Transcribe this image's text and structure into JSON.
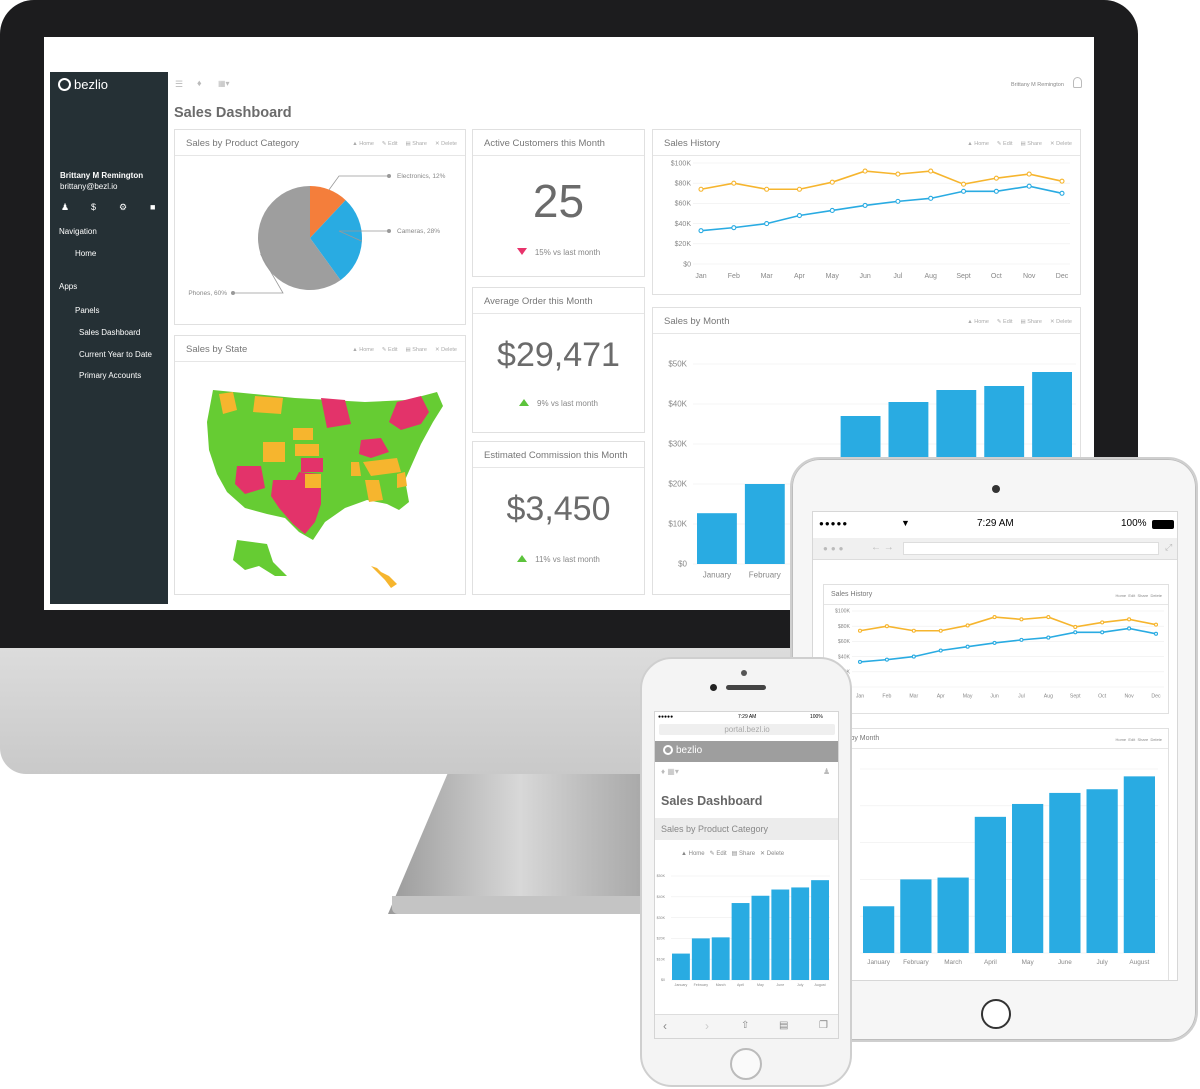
{
  "brand": {
    "name": "bezlio"
  },
  "user": {
    "name": "Brittany M Remington",
    "email": "brittany@bezl.io"
  },
  "sidebar": {
    "navigation_heading": "Navigation",
    "home": "Home",
    "apps_heading": "Apps",
    "panels": "Panels",
    "items": [
      "Sales Dashboard",
      "Current Year to Date",
      "Primary Accounts"
    ]
  },
  "page_title": "Sales Dashboard",
  "panel_actions": {
    "home": "Home",
    "edit": "Edit",
    "share": "Share",
    "delete": "Delete"
  },
  "colors": {
    "accent_blue": "#29abe2",
    "accent_orange": "#f6b52e",
    "pie_orange": "#f47e3b",
    "pie_gray": "#9e9e9e",
    "map_green": "#66cc33",
    "map_red": "#e3336a",
    "map_yellow": "#f6b52e",
    "sidebar": "#253035"
  },
  "panels": {
    "product_category": {
      "title": "Sales by Product Category"
    },
    "state": {
      "title": "Sales by State"
    },
    "active_customers": {
      "title": "Active Customers this Month",
      "value": "25",
      "delta": "15% vs last month",
      "trend": "down"
    },
    "average_order": {
      "title": "Average Order this Month",
      "value": "$29,471",
      "delta": "9% vs last month",
      "trend": "up"
    },
    "commission": {
      "title": "Estimated Commission this Month",
      "value": "$3,450",
      "delta": "11% vs last month",
      "trend": "up"
    },
    "sales_history": {
      "title": "Sales History"
    },
    "sales_by_month": {
      "title": "Sales by Month"
    }
  },
  "tablet": {
    "status": {
      "time": "7:29 AM",
      "battery": "100%"
    },
    "sales_history_title": "Sales History",
    "sales_by_month_title": "Sales by Month"
  },
  "phone": {
    "status": {
      "time": "7:29 AM",
      "battery": "100%"
    },
    "url": "portal.bezl.io",
    "page_title": "Sales Dashboard",
    "panel_title": "Sales by Product Category"
  },
  "chart_data": [
    {
      "type": "pie",
      "title": "Sales by Product Category",
      "slices": [
        {
          "label": "Electronics, 12%",
          "value": 12,
          "color": "#f47e3b"
        },
        {
          "label": "Cameras, 28%",
          "value": 28,
          "color": "#29abe2"
        },
        {
          "label": "Phones, 60%",
          "value": 60,
          "color": "#9e9e9e"
        }
      ]
    },
    {
      "type": "line",
      "title": "Sales History",
      "categories": [
        "Jan",
        "Feb",
        "Mar",
        "Apr",
        "May",
        "Jun",
        "Jul",
        "Aug",
        "Sept",
        "Oct",
        "Nov",
        "Dec"
      ],
      "y_ticks": [
        "$100K",
        "$80K",
        "$60K",
        "$40K",
        "$20K",
        "$0"
      ],
      "ylim": [
        0,
        100000
      ],
      "series": [
        {
          "color": "#f6b52e",
          "values": [
            74000,
            80000,
            74000,
            74000,
            81000,
            92000,
            89000,
            92000,
            79000,
            85000,
            89000,
            82000
          ]
        },
        {
          "color": "#29abe2",
          "values": [
            33000,
            36000,
            40000,
            48000,
            53000,
            58000,
            62000,
            65000,
            72000,
            72000,
            77000,
            70000
          ]
        }
      ]
    },
    {
      "type": "bar",
      "title": "Sales by Month",
      "categories": [
        "January",
        "February",
        "March",
        "April",
        "May",
        "June",
        "July",
        "August"
      ],
      "y_ticks": [
        "$50K",
        "$40K",
        "$30K",
        "$20K",
        "$10K",
        "$0"
      ],
      "ylim": [
        0,
        50000
      ],
      "values": [
        12700,
        20000,
        20500,
        37000,
        40500,
        43500,
        44500,
        48000
      ],
      "color": "#29abe2"
    }
  ]
}
